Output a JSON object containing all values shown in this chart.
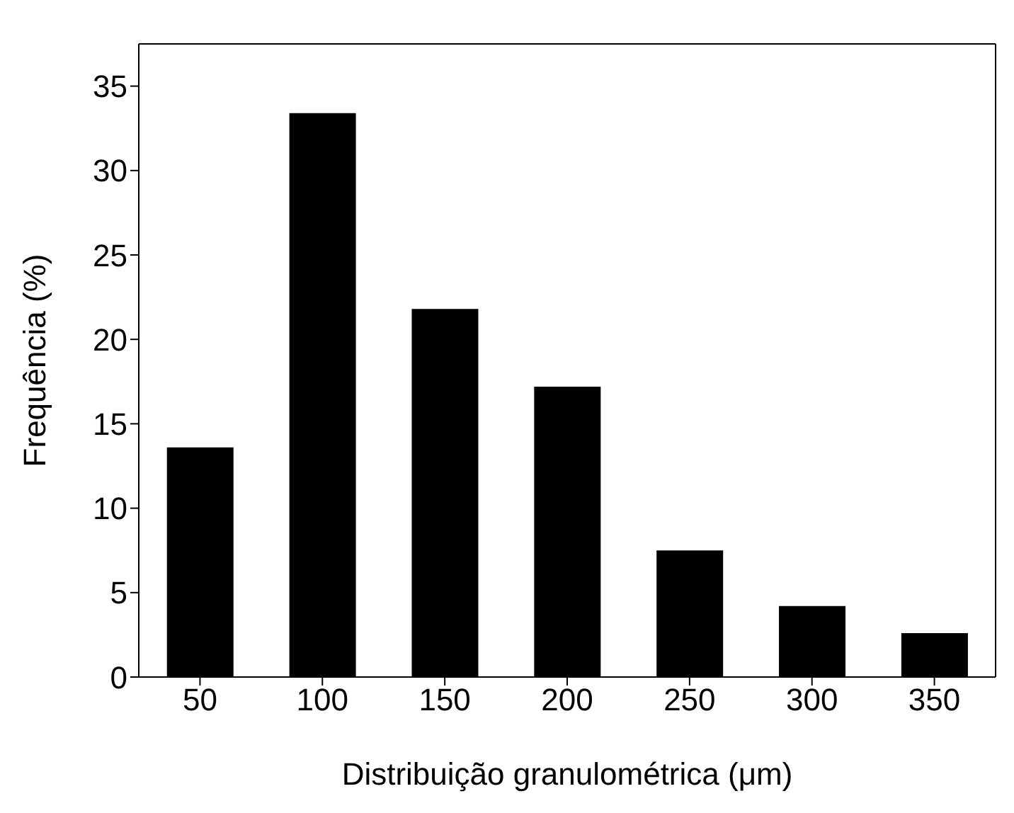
{
  "chart_data": {
    "type": "bar",
    "xlabel": "Distribuição granulométrica (μm)",
    "ylabel": "Frequência (%)",
    "categories": [
      "50",
      "100",
      "150",
      "200",
      "250",
      "300",
      "350"
    ],
    "values": [
      13.6,
      33.4,
      21.8,
      17.2,
      7.5,
      4.2,
      2.6
    ],
    "color": "#000000",
    "ylim": [
      0,
      37.5
    ],
    "yticks": [
      0,
      5,
      10,
      15,
      20,
      25,
      30,
      35
    ]
  }
}
